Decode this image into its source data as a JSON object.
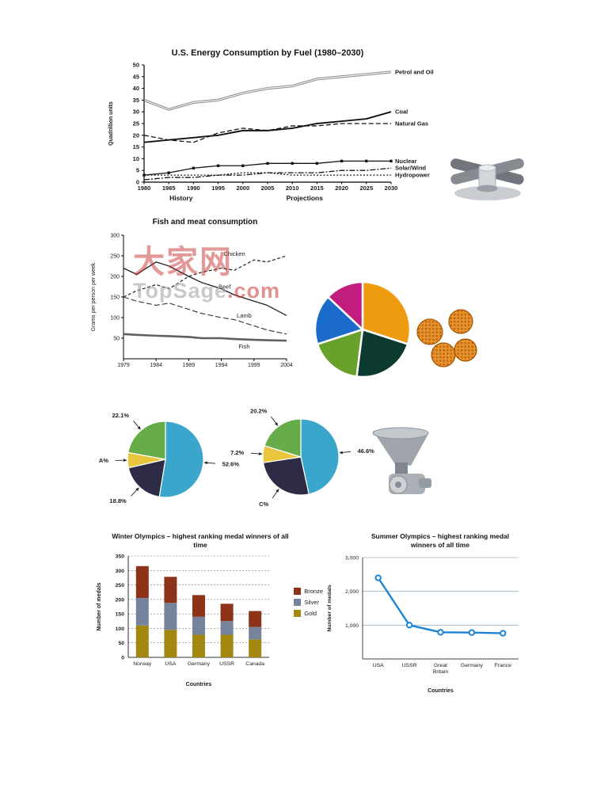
{
  "page": {
    "background": "#ffffff"
  },
  "watermark": {
    "cn": "大家网",
    "site": "TopSage",
    "dotcom": ".com"
  },
  "images": {
    "clamp": "metal-clamp-photo",
    "mesh_spheres": "orange-mesh-spheres-photo",
    "grinder": "metal-grinder-photo"
  },
  "chart_data": [
    {
      "id": "energy",
      "type": "line",
      "title": "U.S. Energy Consumption by Fuel (1980–2030)",
      "ylabel": "Quadrillion units",
      "ylim": [
        0,
        50
      ],
      "yticks": [
        0,
        5,
        10,
        15,
        20,
        25,
        30,
        35,
        40,
        45,
        50
      ],
      "x": [
        1980,
        1985,
        1990,
        1995,
        2000,
        2005,
        2010,
        2015,
        2020,
        2025,
        2030
      ],
      "annotations": [
        "History",
        "Projections"
      ],
      "series": [
        {
          "name": "Petrol and Oil",
          "style": "double",
          "values": [
            35,
            31,
            34,
            35,
            38,
            40,
            41,
            44,
            45,
            46,
            47
          ]
        },
        {
          "name": "Coal",
          "style": "solid",
          "values": [
            17,
            18,
            19,
            20,
            22,
            22,
            23,
            25,
            26,
            27,
            30
          ]
        },
        {
          "name": "Natural Gas",
          "style": "dashed",
          "values": [
            20,
            18,
            17,
            21,
            23,
            22,
            24,
            24,
            25,
            25,
            25
          ]
        },
        {
          "name": "Nuclear",
          "style": "squares",
          "values": [
            3,
            4,
            6,
            7,
            7,
            8,
            8,
            8,
            9,
            9,
            9
          ]
        },
        {
          "name": "Solar/Wind",
          "style": "dashdot",
          "values": [
            1,
            2,
            2,
            3,
            3,
            4,
            4,
            4,
            5,
            5,
            6
          ]
        },
        {
          "name": "Hydropower",
          "style": "dotted",
          "values": [
            3,
            3,
            3,
            3,
            4,
            4,
            3,
            3,
            3,
            3,
            3
          ]
        }
      ]
    },
    {
      "id": "fish",
      "type": "line",
      "title": "Fish and meat consumption",
      "ylabel": "Grams per person per week",
      "ylim": [
        0,
        300
      ],
      "yticks": [
        50,
        100,
        150,
        200,
        250,
        300
      ],
      "xticks": [
        1979,
        1984,
        1989,
        1994,
        1999,
        2004
      ],
      "x": [
        1979,
        1981,
        1984,
        1986,
        1989,
        1991,
        1994,
        1996,
        1999,
        2001,
        2004
      ],
      "series": [
        {
          "name": "Chicken",
          "dash": "4 2.5",
          "width": 1.2,
          "stroke": "#222222",
          "label_x": 1996,
          "label_y": 250,
          "values": [
            150,
            165,
            180,
            170,
            200,
            210,
            220,
            215,
            240,
            235,
            250
          ]
        },
        {
          "name": "Beef",
          "width": 1.3,
          "stroke": "#222222",
          "label_x": 1994.5,
          "label_y": 170,
          "values": [
            220,
            205,
            235,
            225,
            200,
            185,
            170,
            155,
            140,
            130,
            105
          ]
        },
        {
          "name": "Lamb",
          "dash": "7 3",
          "width": 1.1,
          "stroke": "#333333",
          "label_x": 1997.5,
          "label_y": 100,
          "values": [
            150,
            140,
            130,
            135,
            120,
            110,
            100,
            95,
            80,
            70,
            60
          ]
        },
        {
          "name": "Fish",
          "width": 2.6,
          "stroke": "#606060",
          "label_x": 1997.5,
          "label_y": 25,
          "values": [
            60,
            58,
            56,
            55,
            53,
            50,
            50,
            48,
            46,
            45,
            44
          ]
        }
      ]
    },
    {
      "id": "pie-colored",
      "type": "pie",
      "box": [
        136,
        136
      ],
      "center": [
        66,
        68
      ],
      "radius": 60,
      "gap": 2.5,
      "slices": [
        {
          "color": "#ef9b0f",
          "value": 30
        },
        {
          "color": "#0d3a2e",
          "value": 22
        },
        {
          "color": "#68a22b",
          "value": 18
        },
        {
          "color": "#1b6cca",
          "value": 17
        },
        {
          "color": "#c01d7e",
          "value": 13
        }
      ]
    },
    {
      "id": "pie-a",
      "type": "pie",
      "box": [
        195,
        150
      ],
      "center": [
        97,
        78
      ],
      "radius": 48,
      "gap": 1.2,
      "slices": [
        {
          "color": "#3aa6cc",
          "value": 52.6,
          "label": "52.6%"
        },
        {
          "color": "#2d2b45",
          "value": 18.8,
          "label": "18.8%"
        },
        {
          "color": "#e9c73d",
          "value": 6.5,
          "label": "A%"
        },
        {
          "color": "#66ad49",
          "value": 22.1,
          "label": "22.1%"
        }
      ]
    },
    {
      "id": "pie-b",
      "type": "pie",
      "box": [
        195,
        150
      ],
      "center": [
        92,
        75
      ],
      "radius": 48,
      "gap": 1.2,
      "slices": [
        {
          "color": "#3aa6cc",
          "value": 46.6,
          "label": "46.6%"
        },
        {
          "color": "#2d2b45",
          "value": 26.0,
          "label": "C%"
        },
        {
          "color": "#e9c73d",
          "value": 7.2,
          "label": "7.2%"
        },
        {
          "color": "#66ad49",
          "value": 20.2,
          "label": "20.2%"
        }
      ]
    },
    {
      "id": "winter",
      "type": "stacked-bar",
      "title": "Winter Olympics – highest ranking medal winners of all time",
      "xlabel": "Countries",
      "ylabel": "Number of medals",
      "ylim": [
        0,
        350
      ],
      "yticks": [
        0,
        50,
        100,
        150,
        200,
        250,
        300,
        350
      ],
      "categories": [
        "Norway",
        "USA",
        "Germany",
        "USSR",
        "Canada"
      ],
      "series": [
        {
          "name": "Gold",
          "color": "#a3870f",
          "values": [
            110,
            95,
            78,
            78,
            62
          ]
        },
        {
          "name": "Silver",
          "color": "#75849c",
          "values": [
            95,
            93,
            62,
            47,
            43
          ]
        },
        {
          "name": "Bronze",
          "color": "#8c3319",
          "values": [
            110,
            90,
            75,
            60,
            55
          ]
        }
      ],
      "legend": [
        "Bronze",
        "Silver",
        "Gold"
      ]
    },
    {
      "id": "summer",
      "type": "line",
      "title": "Summer Olympics – highest ranking medal winners of all time",
      "xlabel": "Countries",
      "ylabel": "Number of medals",
      "ylim": [
        0,
        3000
      ],
      "yticks": [
        {
          "v": 1000,
          "label": "1,000"
        },
        {
          "v": 2000,
          "label": "2,000"
        },
        {
          "v": 3000,
          "label": "3,000"
        }
      ],
      "categories": [
        "USA",
        "USSR",
        "Great\nBritain",
        "Germany",
        "France"
      ],
      "values": [
        2400,
        1000,
        790,
        780,
        760
      ],
      "color": "#1b84d6"
    }
  ]
}
